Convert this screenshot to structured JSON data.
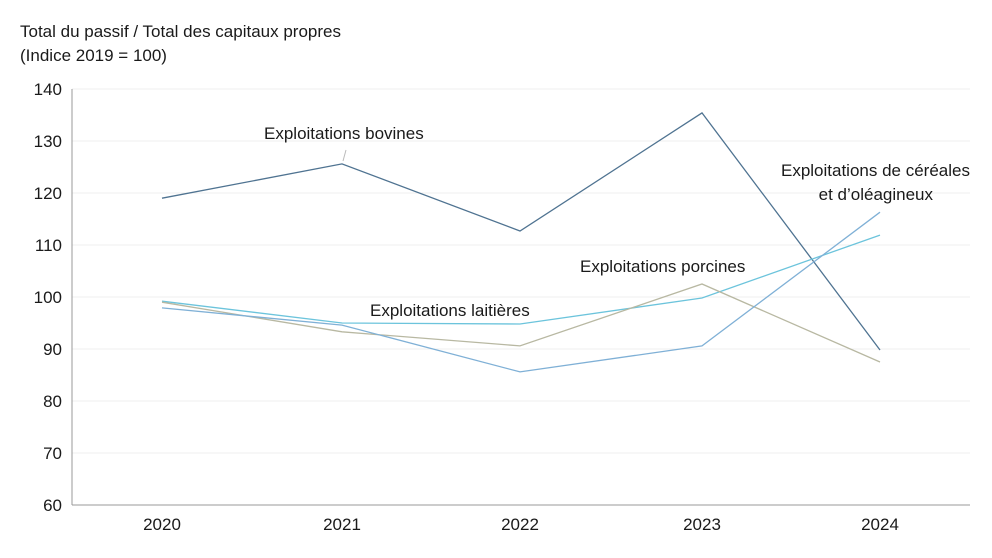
{
  "chart_data": {
    "type": "line",
    "title": "",
    "ylabel_lines": [
      "Total du passif / Total des capitaux propres",
      "(Indice 2019 = 100)"
    ],
    "xlabel": "",
    "categories": [
      "2020",
      "2021",
      "2022",
      "2023",
      "2024"
    ],
    "ylim": [
      60,
      140
    ],
    "yticks": [
      60,
      70,
      80,
      90,
      100,
      110,
      120,
      130,
      140
    ],
    "grid": true,
    "legend": "inline labels",
    "series": [
      {
        "name": "Exploitations bovines",
        "color": "#4f7391",
        "values": [
          119.0,
          125.6,
          112.7,
          135.4,
          89.8
        ]
      },
      {
        "name": "Exploitations laitières",
        "color": "#6cc4dc",
        "values": [
          99.2,
          95.0,
          94.8,
          99.8,
          111.9
        ]
      },
      {
        "name": "Exploitations porcines",
        "color": "#b8b8a2",
        "values": [
          99.0,
          93.3,
          90.6,
          102.5,
          87.5
        ]
      },
      {
        "name": "Exploitations de céréales et d’oléagineux",
        "name_lines": [
          "Exploitations de céréales",
          "et d’oléagineux"
        ],
        "color": "#7fb0d6",
        "values": [
          97.9,
          94.6,
          85.6,
          90.6,
          116.3
        ]
      }
    ]
  }
}
